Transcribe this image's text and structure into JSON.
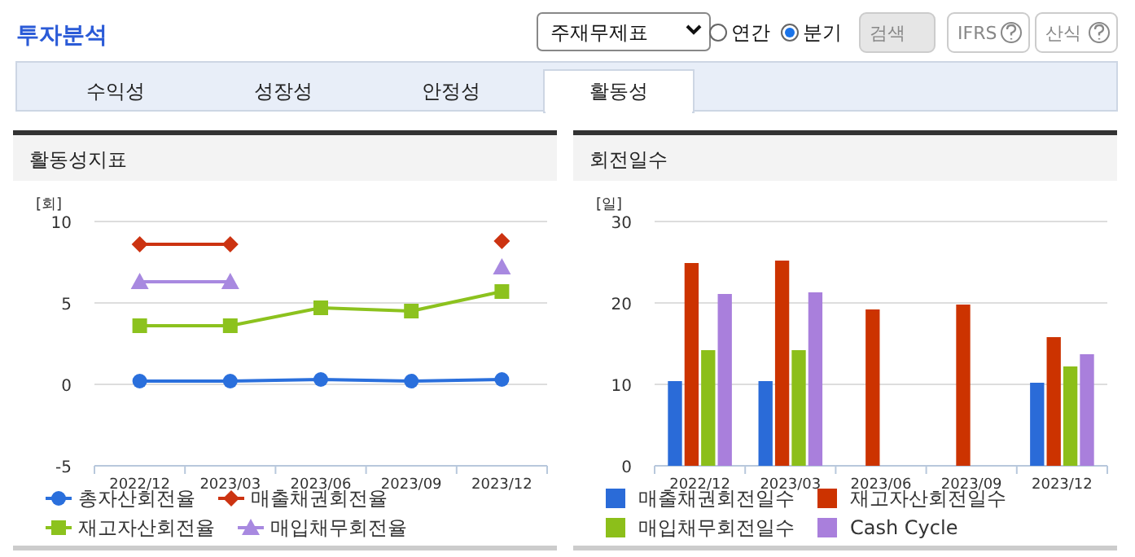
{
  "chart_data": [
    {
      "type": "other",
      "title": "투자분석",
      "annotations": [
        "주재무제표",
        "연간",
        "분기",
        "검색",
        "IFRS",
        "산식",
        "수익성",
        "성장성",
        "안정성",
        "활동성"
      ]
    },
    {
      "type": "line",
      "title": "활동성지표",
      "ylabel": "[회]",
      "categories": [
        "2022/12",
        "2023/03",
        "2023/06",
        "2023/09",
        "2023/12"
      ],
      "ylim": [
        -5,
        10
      ],
      "yticks": [
        -5,
        0,
        5,
        10
      ],
      "grid": "y",
      "legend": "bottom",
      "line_style": "solid",
      "series": [
        {
          "name": "총자산회전율",
          "color": "#2a6fdc",
          "marker": "circle",
          "values": [
            0.2,
            0.2,
            0.3,
            0.2,
            0.3
          ]
        },
        {
          "name": "매출채권회전율",
          "color": "#cc3311",
          "marker": "diamond",
          "values": [
            8.6,
            8.6,
            null,
            null,
            8.8
          ]
        },
        {
          "name": "재고자산회전율",
          "color": "#8cc21e",
          "marker": "square",
          "values": [
            3.6,
            3.6,
            4.7,
            4.5,
            5.7
          ]
        },
        {
          "name": "매입채무회전율",
          "color": "#a889e0",
          "marker": "triangle",
          "values": [
            6.3,
            6.3,
            null,
            null,
            7.2
          ]
        }
      ]
    },
    {
      "type": "bar",
      "title": "회전일수",
      "ylabel": "[일]",
      "categories": [
        "2022/12",
        "2023/03",
        "2023/06",
        "2023/09",
        "2023/12"
      ],
      "ylim": [
        0,
        30
      ],
      "yticks": [
        0,
        10,
        20,
        30
      ],
      "grid": "y",
      "legend": "bottom",
      "series": [
        {
          "name": "매출채권회전일수",
          "color": "#2a6bd8",
          "values": [
            10.4,
            10.4,
            null,
            null,
            10.2
          ]
        },
        {
          "name": "재고자산회전일수",
          "color": "#cc3300",
          "values": [
            24.9,
            25.2,
            19.2,
            19.8,
            15.8
          ]
        },
        {
          "name": "매입채무회전일수",
          "color": "#8cbf1a",
          "values": [
            14.2,
            14.2,
            null,
            null,
            12.2
          ]
        },
        {
          "name": "Cash Cycle",
          "color": "#a97fdc",
          "values": [
            21.1,
            21.3,
            null,
            null,
            13.7
          ]
        }
      ]
    }
  ]
}
